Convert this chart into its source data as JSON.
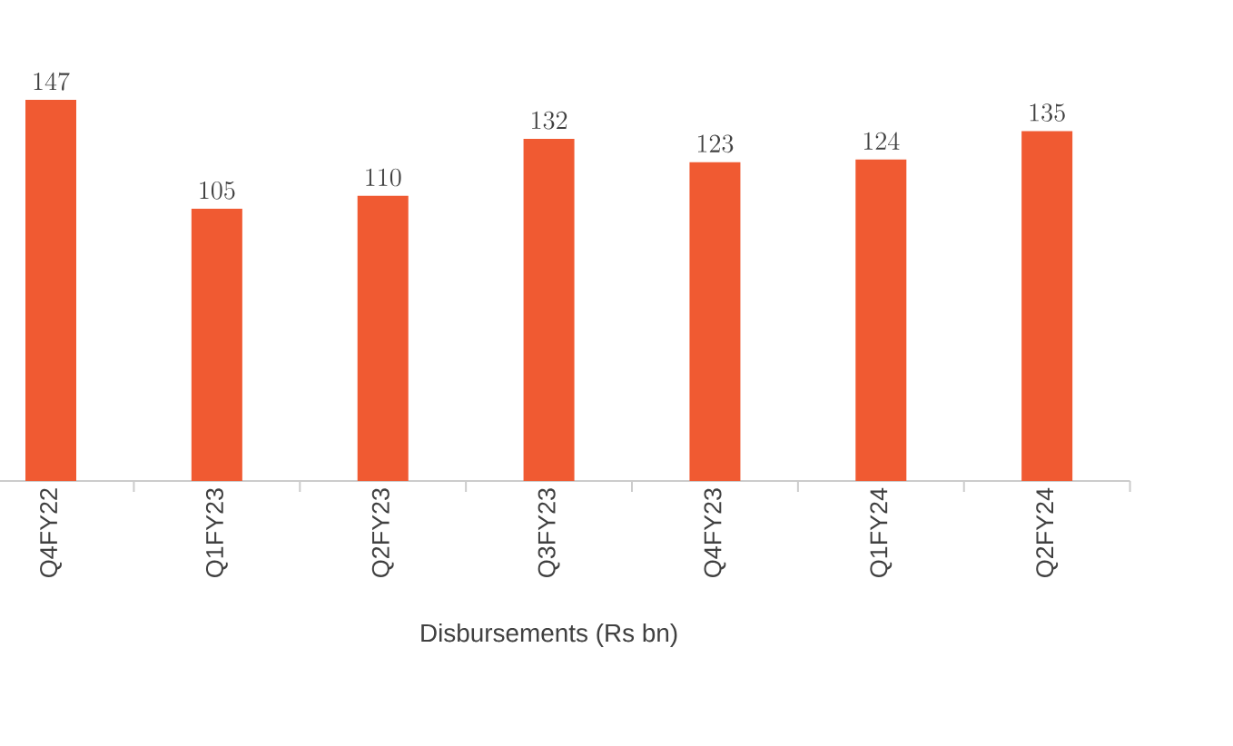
{
  "chart_data": {
    "type": "bar",
    "xlabel": "Disbursements (Rs bn)",
    "categories": [
      "Q4FY22",
      "Q1FY23",
      "Q2FY23",
      "Q3FY23",
      "Q4FY23",
      "Q1FY24",
      "Q2FY24"
    ],
    "values": [
      147,
      105,
      110,
      132,
      123,
      124,
      135
    ],
    "color": "#f05a32",
    "data_labels": true
  }
}
